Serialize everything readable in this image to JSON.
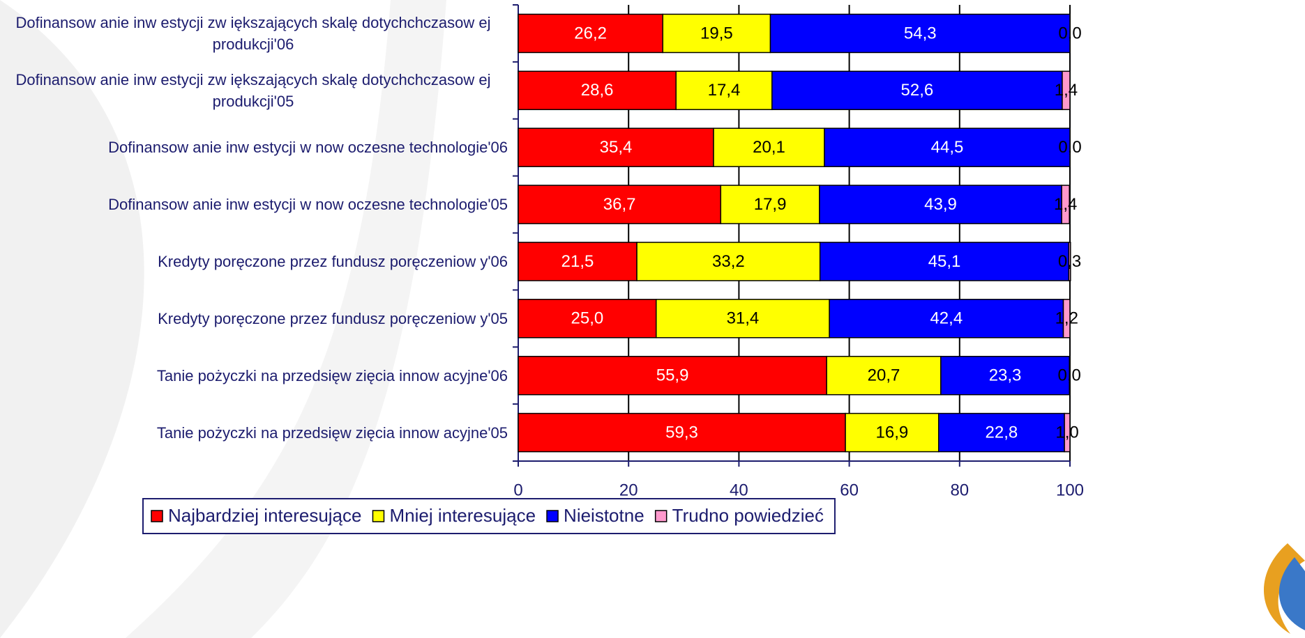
{
  "chart_data": {
    "type": "stacked-bar-horizontal",
    "categories": [
      "Dofinansow anie inw estycji zw iększających skalę dotychchczasow ej produkcji'06",
      "Dofinansow anie inw estycji zw iększających skalę dotychchczasow ej produkcji'05",
      "Dofinansow anie inw estycji w  now oczesne technologie'06",
      "Dofinansow anie inw estycji w  now oczesne technologie'05",
      "Kredyty poręczone przez fundusz poręczeniow y'06",
      "Kredyty poręczone przez fundusz poręczeniow y'05",
      "Tanie pożyczki na przedsięw zięcia innow acyjne'06",
      "Tanie pożyczki na przedsięw zięcia innow acyjne'05"
    ],
    "series": [
      {
        "name": "Najbardziej interesujące",
        "color": "#ff0000",
        "values": [
          26.2,
          28.6,
          35.4,
          36.7,
          21.5,
          25.0,
          55.9,
          59.3
        ],
        "value_labels": [
          "26,2",
          "28,6",
          "35,4",
          "36,7",
          "21,5",
          "25,0",
          "55,9",
          "59,3"
        ]
      },
      {
        "name": "Mniej interesujące",
        "color": "#ffff00",
        "values": [
          19.5,
          17.4,
          20.1,
          17.9,
          33.2,
          31.4,
          20.7,
          16.9
        ],
        "value_labels": [
          "19,5",
          "17,4",
          "20,1",
          "17,9",
          "33,2",
          "31,4",
          "20,7",
          "16,9"
        ]
      },
      {
        "name": "Nieistotne",
        "color": "#0000ff",
        "values": [
          54.3,
          52.6,
          44.5,
          43.9,
          45.1,
          42.4,
          23.3,
          22.8
        ],
        "value_labels": [
          "54,3",
          "52,6",
          "44,5",
          "43,9",
          "45,1",
          "42,4",
          "23,3",
          "22,8"
        ]
      },
      {
        "name": "Trudno powiedzieć",
        "color": "#ff99cc",
        "values": [
          0.0,
          1.4,
          0.0,
          1.4,
          0.3,
          1.2,
          0.0,
          1.0
        ],
        "value_labels": [
          "0,0",
          "1,4",
          "0,0",
          "1,4",
          "0,3",
          "1,2",
          "0,0",
          "1,0"
        ]
      }
    ],
    "xlim": [
      0,
      100
    ],
    "xticks": [
      0,
      20,
      40,
      60,
      80,
      100
    ],
    "grid": true,
    "legend": "bottom"
  }
}
